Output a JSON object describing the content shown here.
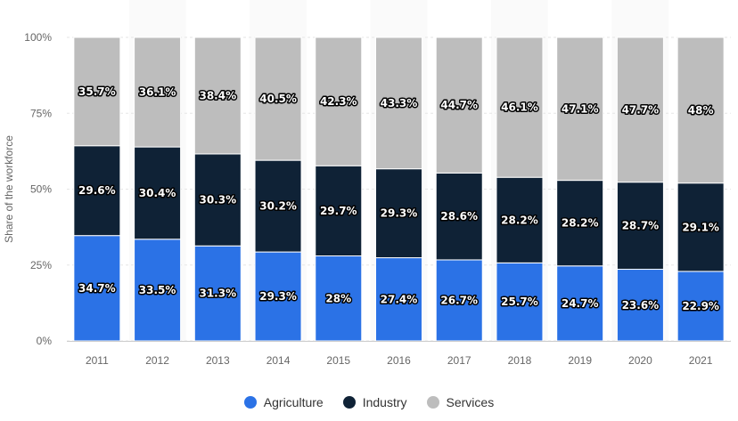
{
  "chart_data": {
    "type": "bar",
    "stacked": true,
    "ylabel": "Share of the workforce",
    "xlabel": "",
    "ylim": [
      0,
      100
    ],
    "yticks": [
      "0%",
      "25%",
      "50%",
      "75%",
      "100%"
    ],
    "legend_position": "bottom",
    "categories": [
      "2011",
      "2012",
      "2013",
      "2014",
      "2015",
      "2016",
      "2017",
      "2018",
      "2019",
      "2020",
      "2021"
    ],
    "series": [
      {
        "name": "Agriculture",
        "color": "#2b72e6",
        "values": [
          34.7,
          33.5,
          31.3,
          29.3,
          28,
          27.4,
          26.7,
          25.7,
          24.7,
          23.6,
          22.9
        ],
        "labels": [
          "34.7%",
          "33.5%",
          "31.3%",
          "29.3%",
          "28%",
          "27.4%",
          "26.7%",
          "25.7%",
          "24.7%",
          "23.6%",
          "22.9%"
        ]
      },
      {
        "name": "Industry",
        "color": "#0f2236",
        "values": [
          29.6,
          30.4,
          30.3,
          30.2,
          29.7,
          29.3,
          28.6,
          28.2,
          28.2,
          28.7,
          29.1
        ],
        "labels": [
          "29.6%",
          "30.4%",
          "30.3%",
          "30.2%",
          "29.7%",
          "29.3%",
          "28.6%",
          "28.2%",
          "28.2%",
          "28.7%",
          "29.1%"
        ]
      },
      {
        "name": "Services",
        "color": "#bdbdbd",
        "values": [
          35.7,
          36.1,
          38.4,
          40.5,
          42.3,
          43.3,
          44.7,
          46.1,
          47.1,
          47.7,
          48
        ],
        "labels": [
          "35.7%",
          "36.1%",
          "38.4%",
          "40.5%",
          "42.3%",
          "43.3%",
          "44.7%",
          "46.1%",
          "47.1%",
          "47.7%",
          "48%"
        ]
      }
    ]
  }
}
